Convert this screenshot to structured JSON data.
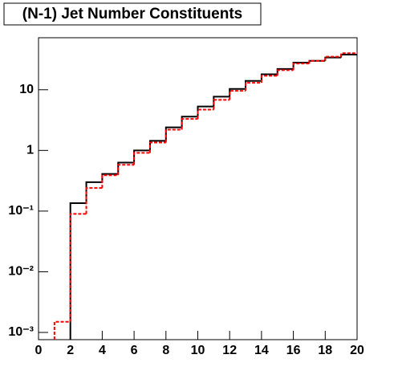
{
  "chart_data": {
    "type": "histogram",
    "title": "(N-1) Jet Number Constituents",
    "bins": [
      0,
      1,
      2,
      3,
      4,
      5,
      6,
      7,
      8,
      9,
      10,
      11,
      12,
      13,
      14,
      15,
      16,
      17,
      18,
      19,
      20
    ],
    "series": [
      {
        "color": "#000000",
        "style": "solid",
        "values": [
          null,
          null,
          0.135,
          0.3,
          0.41,
          0.63,
          1.0,
          1.44,
          2.4,
          3.6,
          5.3,
          7.7,
          10.3,
          14,
          18,
          22,
          28,
          30,
          34,
          38
        ]
      },
      {
        "color": "#ff0000",
        "style": "dashed",
        "values": [
          null,
          0.0015,
          0.09,
          0.24,
          0.39,
          0.58,
          0.91,
          1.35,
          2.2,
          3.3,
          4.7,
          6.8,
          9.6,
          13,
          17,
          21,
          27,
          30,
          35,
          40
        ]
      }
    ],
    "xlim": [
      0,
      20
    ],
    "xticks": [
      0,
      2,
      4,
      6,
      8,
      10,
      12,
      14,
      16,
      18,
      20
    ],
    "ylim": [
      0.00076,
      72
    ],
    "log_y": true,
    "yticks": [
      {
        "value": 0.001,
        "label": "10⁻³"
      },
      {
        "value": 0.01,
        "label": "10⁻²"
      },
      {
        "value": 0.1,
        "label": "10⁻¹"
      },
      1,
      10
    ]
  }
}
